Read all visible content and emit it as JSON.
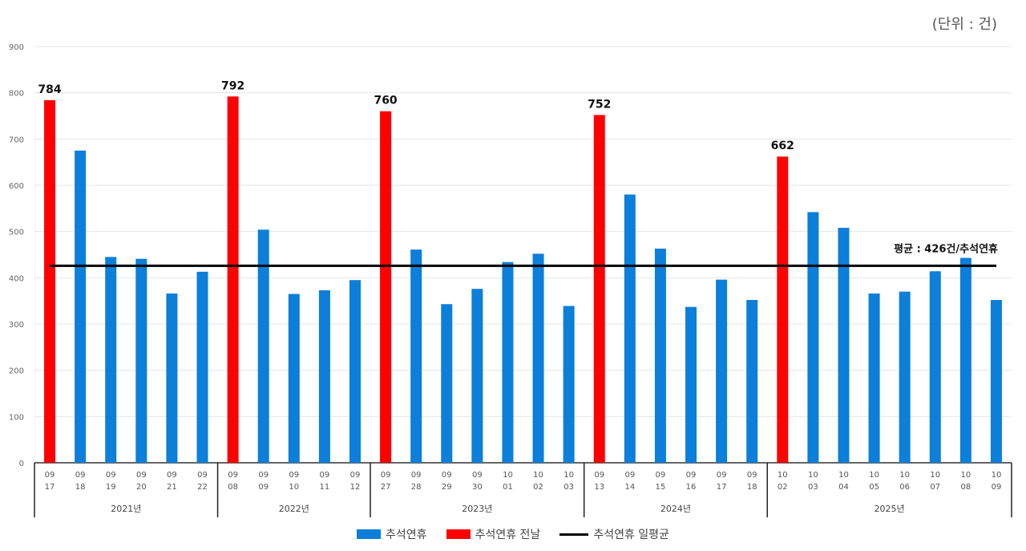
{
  "unit_label": "(단위 : 건)",
  "chart_data": {
    "type": "bar",
    "ylim": [
      0,
      900
    ],
    "yticks": [
      0,
      100,
      200,
      300,
      400,
      500,
      600,
      700,
      800,
      900
    ],
    "grid": true,
    "legend_placement": "bottom",
    "colors": {
      "holiday": "#0b7fd9",
      "eve": "#ff0000",
      "average": "#000000"
    },
    "groups": [
      {
        "label": "2021년",
        "bars": [
          {
            "date": [
              "09",
              "17"
            ],
            "value": 784,
            "type": "eve"
          },
          {
            "date": [
              "09",
              "18"
            ],
            "value": 675,
            "type": "holiday"
          },
          {
            "date": [
              "09",
              "19"
            ],
            "value": 445,
            "type": "holiday"
          },
          {
            "date": [
              "09",
              "20"
            ],
            "value": 441,
            "type": "holiday"
          },
          {
            "date": [
              "09",
              "21"
            ],
            "value": 366,
            "type": "holiday"
          },
          {
            "date": [
              "09",
              "22"
            ],
            "value": 413,
            "type": "holiday"
          }
        ]
      },
      {
        "label": "2022년",
        "bars": [
          {
            "date": [
              "09",
              "08"
            ],
            "value": 792,
            "type": "eve"
          },
          {
            "date": [
              "09",
              "09"
            ],
            "value": 504,
            "type": "holiday"
          },
          {
            "date": [
              "09",
              "10"
            ],
            "value": 365,
            "type": "holiday"
          },
          {
            "date": [
              "09",
              "11"
            ],
            "value": 373,
            "type": "holiday"
          },
          {
            "date": [
              "09",
              "12"
            ],
            "value": 395,
            "type": "holiday"
          }
        ]
      },
      {
        "label": "2023년",
        "bars": [
          {
            "date": [
              "09",
              "27"
            ],
            "value": 760,
            "type": "eve"
          },
          {
            "date": [
              "09",
              "28"
            ],
            "value": 461,
            "type": "holiday"
          },
          {
            "date": [
              "09",
              "29"
            ],
            "value": 343,
            "type": "holiday"
          },
          {
            "date": [
              "09",
              "30"
            ],
            "value": 376,
            "type": "holiday"
          },
          {
            "date": [
              "10",
              "01"
            ],
            "value": 434,
            "type": "holiday"
          },
          {
            "date": [
              "10",
              "02"
            ],
            "value": 452,
            "type": "holiday"
          },
          {
            "date": [
              "10",
              "03"
            ],
            "value": 339,
            "type": "holiday"
          }
        ]
      },
      {
        "label": "2024년",
        "bars": [
          {
            "date": [
              "09",
              "13"
            ],
            "value": 752,
            "type": "eve"
          },
          {
            "date": [
              "09",
              "14"
            ],
            "value": 580,
            "type": "holiday"
          },
          {
            "date": [
              "09",
              "15"
            ],
            "value": 463,
            "type": "holiday"
          },
          {
            "date": [
              "09",
              "16"
            ],
            "value": 337,
            "type": "holiday"
          },
          {
            "date": [
              "09",
              "17"
            ],
            "value": 396,
            "type": "holiday"
          },
          {
            "date": [
              "09",
              "18"
            ],
            "value": 352,
            "type": "holiday"
          }
        ]
      },
      {
        "label": "2025년",
        "bars": [
          {
            "date": [
              "10",
              "02"
            ],
            "value": 662,
            "type": "eve"
          },
          {
            "date": [
              "10",
              "03"
            ],
            "value": 542,
            "type": "holiday"
          },
          {
            "date": [
              "10",
              "04"
            ],
            "value": 508,
            "type": "holiday"
          },
          {
            "date": [
              "10",
              "05"
            ],
            "value": 366,
            "type": "holiday"
          },
          {
            "date": [
              "10",
              "06"
            ],
            "value": 370,
            "type": "holiday"
          },
          {
            "date": [
              "10",
              "07"
            ],
            "value": 414,
            "type": "holiday"
          },
          {
            "date": [
              "10",
              "08"
            ],
            "value": 443,
            "type": "holiday"
          },
          {
            "date": [
              "10",
              "09"
            ],
            "value": 352,
            "type": "holiday"
          }
        ]
      }
    ],
    "average": {
      "value": 426,
      "label": "평균 : 426건/추석연휴"
    },
    "legend": [
      {
        "key": "holiday",
        "label": "추석연휴"
      },
      {
        "key": "eve",
        "label": "추석연휴 전날"
      },
      {
        "key": "average",
        "label": "추석연휴 일평균"
      }
    ]
  }
}
